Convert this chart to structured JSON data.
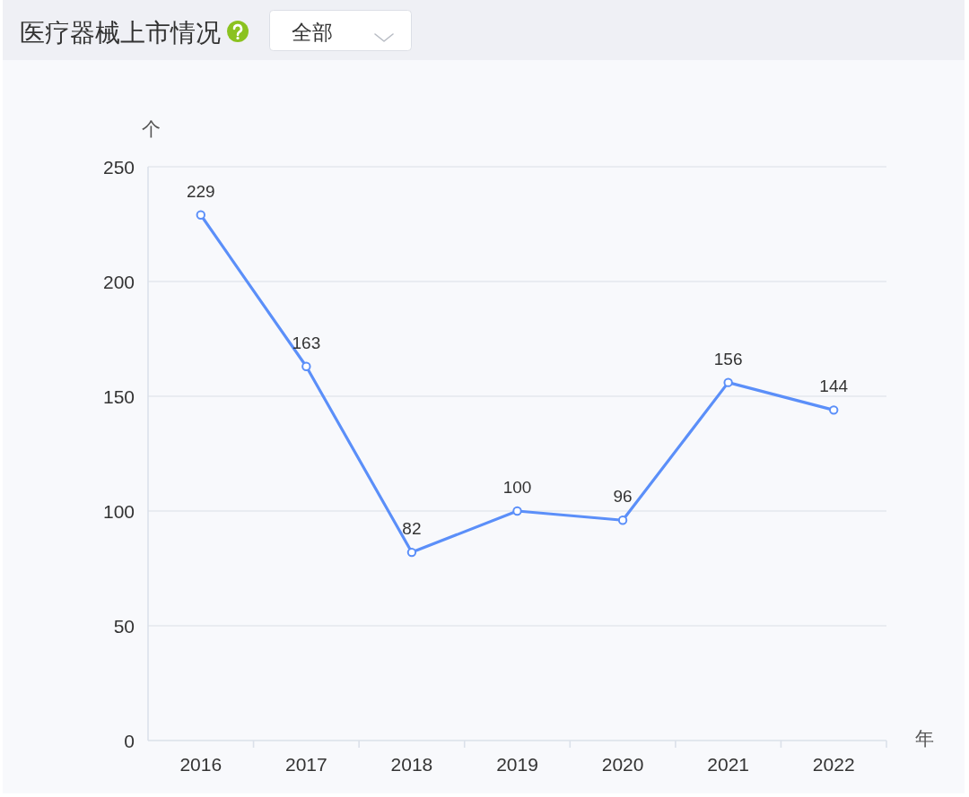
{
  "chart_data": {
    "type": "line",
    "title": "医疗器械上市情况",
    "annotations": [
      "全部"
    ],
    "ylabel": "个",
    "xlabel": "年",
    "categories": [
      "2016",
      "2017",
      "2018",
      "2019",
      "2020",
      "2021",
      "2022"
    ],
    "values": [
      229,
      163,
      82,
      100,
      96,
      156,
      144
    ],
    "color": "#5b8ff9",
    "ylim": [
      0,
      250
    ],
    "yticks": [
      0,
      50,
      100,
      150,
      200,
      250
    ],
    "grid": "y",
    "marker": "circle",
    "line_style": "solid",
    "data_labels": true
  }
}
